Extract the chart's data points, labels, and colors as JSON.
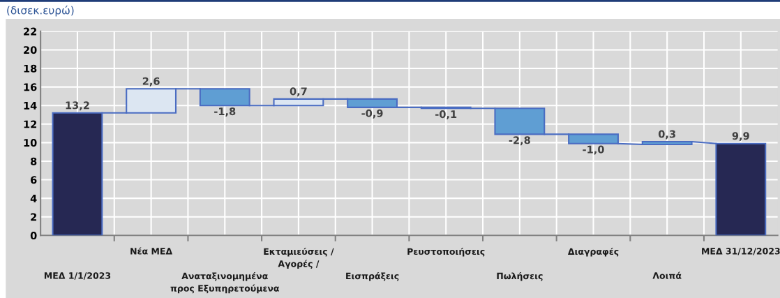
{
  "chart_data": {
    "type": "bar",
    "title": "(δισεκ.ευρώ)",
    "categories": [
      "ΜΕΔ 1/1/2023",
      "Νέα ΜΕΔ",
      "Αναταξινομημένα\nπρος Εξυπηρετούμενα",
      "Εκταμιεύσεις /\nΑγορές /",
      "Εισπράξεις",
      "Ρευστοποιήσεις",
      "Πωλήσεις",
      "Διαγραφές",
      "Λοιπά",
      "ΜΕΔ 31/12/2023"
    ],
    "values": [
      13.2,
      2.6,
      -1.8,
      0.7,
      -0.9,
      -0.1,
      -2.8,
      -1.0,
      0.3,
      9.9
    ],
    "base": [
      0,
      13.2,
      15.8,
      14.0,
      14.7,
      13.8,
      13.7,
      10.9,
      9.8,
      0
    ],
    "colors": [
      "#262853",
      "#dce6f2",
      "#5f9ed3",
      "#dce6f2",
      "#5f9ed3",
      "#5f9ed3",
      "#5f9ed3",
      "#5f9ed3",
      "#5f9ed3",
      "#262853"
    ],
    "value_labels": [
      "13,2",
      "2,6",
      "-1,8",
      "0,7",
      "-0,9",
      "-0,1",
      "-2,8",
      "-1,0",
      "0,3",
      "9,9"
    ],
    "ylim": [
      0,
      22
    ],
    "yticks": [
      0,
      2,
      4,
      6,
      8,
      10,
      12,
      14,
      16,
      18,
      20,
      22
    ],
    "grid": true,
    "legend": false
  }
}
